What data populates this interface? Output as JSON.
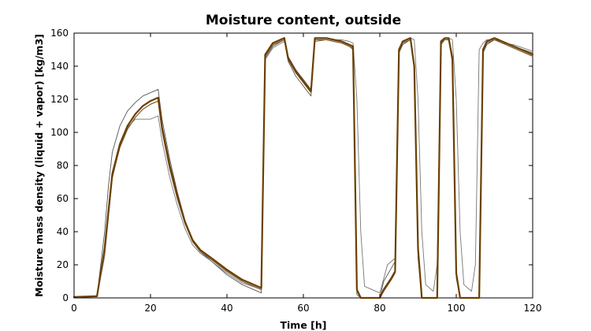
{
  "chart_data": {
    "type": "line",
    "title": "Moisture content, outside",
    "xlabel": "Time [h]",
    "ylabel": "Moisture mass density (liquid + vapor) [kg/m3]",
    "xlim": [
      0,
      120
    ],
    "ylim": [
      0,
      160
    ],
    "xticks": [
      0,
      20,
      40,
      60,
      80,
      100,
      120
    ],
    "yticks": [
      0,
      20,
      40,
      60,
      80,
      100,
      120,
      140,
      160
    ],
    "grid": false,
    "legend": "none",
    "series": [
      {
        "color": "#6b3f00",
        "width": 2.2,
        "x": [
          0,
          6,
          8,
          10,
          12,
          14,
          16,
          18,
          20,
          22,
          23,
          25,
          27,
          29,
          31,
          33,
          36,
          40,
          44,
          48,
          49,
          50,
          52,
          55,
          56,
          58,
          60,
          62,
          63,
          66,
          68,
          70,
          72,
          73,
          74,
          75,
          76,
          78,
          80,
          81,
          83,
          84,
          85,
          86,
          88,
          89,
          90,
          91,
          92,
          94,
          95,
          96,
          97,
          98,
          99,
          100,
          101,
          102,
          104,
          105,
          106,
          107,
          108,
          110,
          112,
          115,
          120
        ],
        "y": [
          0.5,
          1,
          30,
          75,
          93,
          104,
          111,
          116,
          119,
          121,
          103,
          80,
          62,
          46,
          35,
          29,
          24,
          17,
          11,
          7,
          6,
          147,
          154,
          157,
          145,
          137,
          131,
          125,
          157,
          157,
          156,
          155,
          153,
          152,
          5,
          0,
          0,
          0,
          0,
          5,
          12,
          16,
          150,
          155,
          157,
          140,
          30,
          0,
          0,
          0,
          0,
          155,
          157,
          157,
          145,
          15,
          0,
          0,
          0,
          0,
          0,
          150,
          155,
          157,
          155,
          152,
          147
        ]
      },
      {
        "color": "#7a5a2a",
        "width": 1.2,
        "x": [
          0,
          6,
          8,
          10,
          12,
          14,
          16,
          18,
          20,
          22,
          23,
          25,
          27,
          29,
          31,
          33,
          36,
          40,
          44,
          48,
          49,
          50,
          52,
          55,
          56,
          58,
          60,
          62,
          63,
          66,
          68,
          70,
          72,
          73,
          74,
          75,
          76,
          78,
          80,
          81,
          83,
          84,
          85,
          86,
          88,
          89,
          90,
          91,
          92,
          94,
          95,
          96,
          97,
          98,
          99,
          100,
          101,
          102,
          104,
          105,
          106,
          107,
          108,
          110,
          112,
          115,
          120
        ],
        "y": [
          0.5,
          1,
          28,
          73,
          91,
          102,
          109,
          114,
          117,
          119,
          101,
          78,
          60,
          45,
          34,
          28,
          23,
          16,
          10,
          6,
          5,
          146,
          153,
          156,
          144,
          136,
          130,
          124,
          156,
          156,
          155,
          154,
          152,
          151,
          4,
          0,
          0,
          0,
          0,
          4,
          11,
          15,
          149,
          154,
          156,
          139,
          28,
          0,
          0,
          0,
          0,
          154,
          156,
          156,
          144,
          14,
          0,
          0,
          0,
          0,
          0,
          149,
          154,
          156,
          154,
          151,
          146
        ]
      },
      {
        "color": "#555555",
        "width": 0.9,
        "x": [
          0,
          6,
          8,
          9,
          10,
          12,
          14,
          16,
          18,
          20,
          22,
          23,
          25,
          27,
          29,
          31,
          33,
          36,
          40,
          44,
          48,
          49,
          50,
          52,
          55,
          56,
          58,
          60,
          62,
          63,
          66,
          68,
          70,
          72,
          73,
          74,
          75,
          76,
          78,
          80,
          81,
          83,
          84,
          85,
          86,
          88,
          89,
          90,
          91,
          92,
          94,
          95,
          96,
          97,
          98,
          99,
          100,
          101,
          102,
          104,
          105,
          106,
          107,
          108,
          110,
          112,
          115,
          120
        ],
        "y": [
          0.5,
          1,
          40,
          68,
          88,
          104,
          113,
          118,
          122,
          124,
          126,
          108,
          84,
          64,
          47,
          35,
          28,
          22,
          14,
          8,
          4,
          3,
          145,
          152,
          156,
          143,
          134,
          128,
          122,
          155,
          156,
          155,
          154,
          152,
          150,
          2,
          0,
          0,
          0,
          0,
          10,
          18,
          22,
          148,
          153,
          156,
          138,
          24,
          0,
          0,
          0,
          0,
          153,
          156,
          156,
          142,
          12,
          0,
          0,
          0,
          0,
          0,
          148,
          153,
          156,
          155,
          152,
          148
        ]
      },
      {
        "color": "#777777",
        "width": 0.9,
        "x": [
          0,
          6,
          8,
          10,
          12,
          14,
          16,
          18,
          20,
          22,
          23,
          25,
          27,
          29,
          31,
          33,
          36,
          40,
          44,
          48,
          49,
          50,
          52,
          55,
          56,
          58,
          60,
          62,
          63,
          66,
          68,
          70,
          72,
          73,
          74,
          75,
          76,
          80,
          82,
          84,
          85,
          86,
          88,
          89,
          90,
          91,
          92,
          94,
          95,
          96,
          97,
          98,
          99,
          100,
          101,
          102,
          104,
          105,
          106,
          107,
          108,
          110,
          112,
          115,
          120
        ],
        "y": [
          0.5,
          1,
          25,
          72,
          92,
          103,
          108,
          108,
          108,
          110,
          95,
          73,
          56,
          42,
          32,
          27,
          22,
          15,
          9,
          6,
          5,
          144,
          151,
          155,
          146,
          138,
          132,
          126,
          157,
          157,
          156,
          156,
          155,
          154,
          120,
          40,
          7,
          3,
          20,
          24,
          150,
          155,
          157,
          156,
          120,
          40,
          8,
          4,
          20,
          155,
          157,
          157,
          156,
          120,
          40,
          8,
          4,
          20,
          150,
          154,
          156,
          156,
          154,
          153,
          149
        ]
      }
    ]
  }
}
